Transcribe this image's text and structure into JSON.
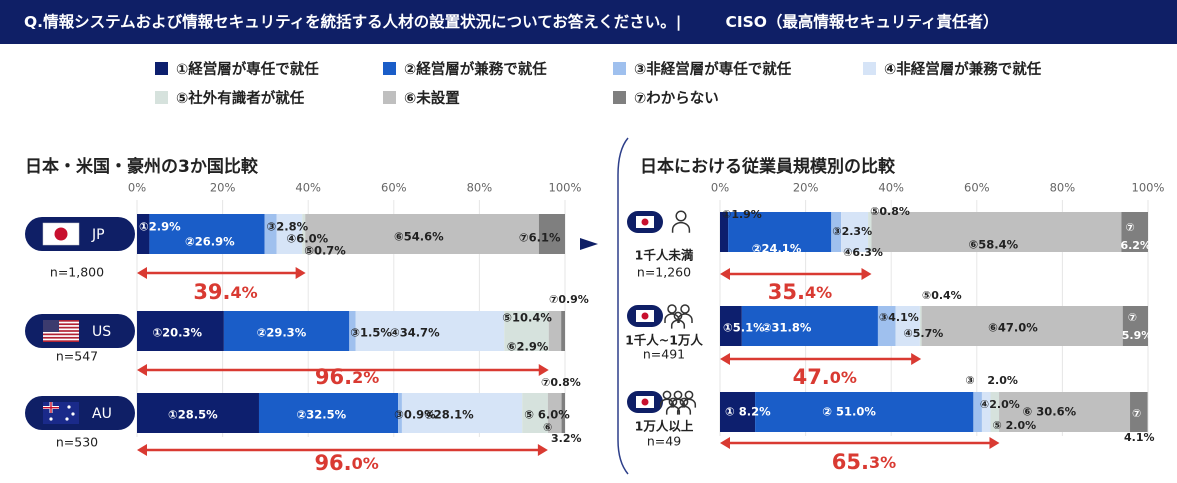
{
  "header": {
    "question": "Q.情報システムおよび情報セキュリティを統括する人材の設置状況についてお答えください。|",
    "subject": "CISO（最高情報セキュリティ責任者）"
  },
  "legend": [
    {
      "label": "①経営層が専任で就任",
      "color": "#0d1f6e"
    },
    {
      "label": "②経営層が兼務で就任",
      "color": "#1a5dc8"
    },
    {
      "label": "③非経営層が専任で就任",
      "color": "#9fc0ee"
    },
    {
      "label": "④非経営層が兼務で就任",
      "color": "#d6e4f7"
    },
    {
      "label": "⑤社外有識者が就任",
      "color": "#d6e2dd"
    },
    {
      "label": "⑥未設置",
      "color": "#bfbfbf"
    },
    {
      "label": "⑦わからない",
      "color": "#7f7f7f"
    }
  ],
  "left_title": "日本・米国・豪州の3か国比較",
  "right_title": "日本における従業員規模別の比較",
  "chart_data": [
    {
      "type": "bar",
      "orientation": "horizontal",
      "stacked": true,
      "title": "日本・米国・豪州の3か国比較",
      "xlim": [
        0,
        100
      ],
      "ticks": [
        "0%",
        "20%",
        "40%",
        "60%",
        "80%",
        "100%"
      ],
      "categories": [
        "JP",
        "US",
        "AU"
      ],
      "n_labels": [
        "n=1,800",
        "n=547",
        "n=530"
      ],
      "series": [
        {
          "name": "①経営層が専任で就任",
          "values": [
            2.9,
            20.3,
            28.5
          ]
        },
        {
          "name": "②経営層が兼務で就任",
          "values": [
            26.9,
            29.3,
            32.5
          ]
        },
        {
          "name": "③非経営層が専任で就任",
          "values": [
            2.8,
            1.5,
            0.9
          ]
        },
        {
          "name": "④非経営層が兼務で就任",
          "values": [
            6.0,
            34.7,
            28.1
          ]
        },
        {
          "name": "⑤社外有識者が就任",
          "values": [
            0.7,
            10.4,
            6.0
          ]
        },
        {
          "name": "⑥未設置",
          "values": [
            54.6,
            2.9,
            3.2
          ]
        },
        {
          "name": "⑦わからない",
          "values": [
            6.1,
            0.9,
            0.8
          ]
        }
      ],
      "labels": [
        [
          "①2.9%",
          "②26.9%",
          "③2.8%",
          "④6.0%",
          "⑤0.7%",
          "⑥54.6%",
          "⑦6.1%"
        ],
        [
          "①20.3%",
          "②29.3%",
          "③1.5%",
          "④34.7%",
          "⑤10.4%",
          "⑥2.9%",
          "⑦0.9%"
        ],
        [
          "①28.5%",
          "②32.5%",
          "③0.9%",
          "④28.1%",
          "⑤ 6.0%",
          "⑥",
          "⑦0.8%"
        ]
      ],
      "extra_label_au": "3.2%",
      "totals": [
        {
          "major": "39.",
          "minor": "4%",
          "value": 39.4
        },
        {
          "major": "96.",
          "minor": "2%",
          "value": 96.2
        },
        {
          "major": "96.",
          "minor": "0%",
          "value": 96.0
        }
      ]
    },
    {
      "type": "bar",
      "orientation": "horizontal",
      "stacked": true,
      "title": "日本における従業員規模別の比較",
      "xlim": [
        0,
        100
      ],
      "ticks": [
        "0%",
        "20%",
        "40%",
        "60%",
        "80%",
        "100%"
      ],
      "categories": [
        "1千人未満",
        "1千人~1万人",
        "1万人以上"
      ],
      "n_labels": [
        "n=1,260",
        "n=491",
        "n=49"
      ],
      "series": [
        {
          "name": "①経営層が専任で就任",
          "values": [
            1.9,
            5.1,
            8.2
          ]
        },
        {
          "name": "②経営層が兼務で就任",
          "values": [
            24.1,
            31.8,
            51.0
          ]
        },
        {
          "name": "③非経営層が専任で就任",
          "values": [
            2.3,
            4.1,
            2.0
          ]
        },
        {
          "name": "④非経営層が兼務で就任",
          "values": [
            6.3,
            5.7,
            2.0
          ]
        },
        {
          "name": "⑤社外有識者が就任",
          "values": [
            0.8,
            0.4,
            2.0
          ]
        },
        {
          "name": "⑥未設置",
          "values": [
            58.4,
            47.0,
            30.6
          ]
        },
        {
          "name": "⑦わからない",
          "values": [
            6.2,
            5.9,
            4.1
          ]
        }
      ],
      "labels": [
        [
          "①1.9%",
          "②24.1%",
          "③2.3%",
          "④6.3%",
          "⑤0.8%",
          "⑥58.4%",
          "⑦",
          "6.2%"
        ],
        [
          "①5.1%",
          "②31.8%",
          "③4.1%",
          "④5.7%",
          "⑤0.4%",
          "⑥47.0%",
          "⑦",
          "5.9%"
        ],
        [
          "① 8.2%",
          "② 51.0%",
          "③",
          "④2.0%",
          "⑤ 2.0%",
          "⑥ 30.6%",
          "⑦",
          "4.1%"
        ]
      ],
      "extra_label_3": "2.0%",
      "totals": [
        {
          "major": "35.",
          "minor": "4%",
          "value": 35.4
        },
        {
          "major": "47.",
          "minor": "0%",
          "value": 47.0
        },
        {
          "major": "65.",
          "minor": "3%",
          "value": 65.3
        }
      ]
    }
  ]
}
